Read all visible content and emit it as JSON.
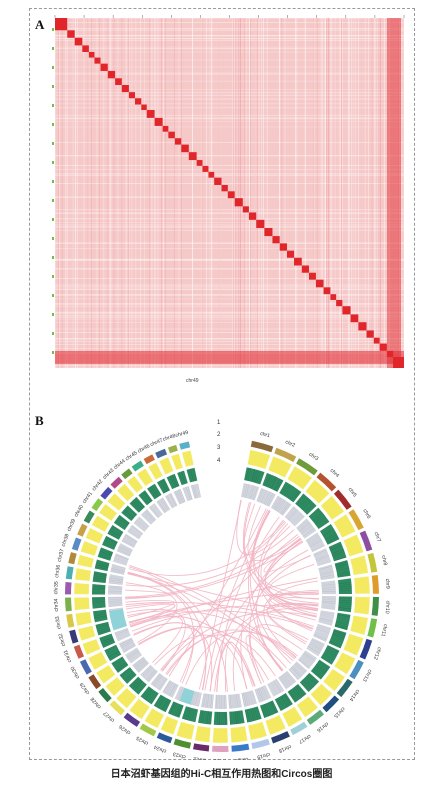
{
  "figure": {
    "panel_a_label": "A",
    "panel_b_label": "B",
    "caption": "日本沼虾基因组的Hi-C相互作用热图和Circos圈图",
    "heatmap_footer": "chr49"
  },
  "colors": {
    "heatmap_bg": "#f6c9c9",
    "heatmap_dense": "#e0252b",
    "track1_yellow": "#f4ea62",
    "track2_green": "#2e8b62",
    "track3_gray": "#d3d6de",
    "link_pink": "#f2b5c3"
  },
  "heatmap": {
    "block_count": 49
  },
  "circos": {
    "track_labels": [
      "1",
      "2",
      "3",
      "4"
    ],
    "chromosomes": [
      "chr1",
      "chr2",
      "chr3",
      "chr4",
      "chr5",
      "chr6",
      "chr7",
      "chr8",
      "chr9",
      "chr10",
      "chr11",
      "chr12",
      "chr13",
      "chr14",
      "chr15",
      "chr16",
      "chr17",
      "chr18",
      "chr19",
      "chr20",
      "chr21",
      "chr22",
      "chr23",
      "chr24",
      "chr25",
      "chr26",
      "chr27",
      "chr28",
      "chr29",
      "chr30",
      "chr31",
      "chr32",
      "chr33",
      "chr34",
      "chr35",
      "chr36",
      "chr37",
      "chr38",
      "chr39",
      "chr40",
      "chr41",
      "chr42",
      "chr43",
      "chr44",
      "chr45",
      "chr46",
      "chr47",
      "chr48",
      "chr49"
    ],
    "chromosome_colors": [
      "#8a6a3a",
      "#c2a24a",
      "#6f9b3b",
      "#b5532f",
      "#a22c2c",
      "#d8a531",
      "#8f4fa0",
      "#c3c63b",
      "#e09b2d",
      "#3f8f4a",
      "#6fbf4a",
      "#2d3f8f",
      "#4a8fbf",
      "#2a6a6a",
      "#1f4f7f",
      "#5aaa7a",
      "#9fd0d8",
      "#2a3f6f",
      "#b2c8e8",
      "#3a7ac8",
      "#e0a0c0",
      "#6a2a6a",
      "#4f8f2f",
      "#2a5a9a",
      "#a0c84a",
      "#5a3a8a",
      "#e8e05a",
      "#2a7a4a",
      "#8a4a2a",
      "#4a6ab0",
      "#c85a4a",
      "#3a3a7a",
      "#d8c84a",
      "#7ab04a",
      "#9a5ab0",
      "#4ab0b0",
      "#b08a3a",
      "#5a8ac8",
      "#c8a04a",
      "#3a8a5a",
      "#8ac84a",
      "#4a4ab0",
      "#b04a8a",
      "#6a9a3a",
      "#3ab08a",
      "#c86a3a",
      "#4a6a9a",
      "#9ab04a",
      "#5ab0c8"
    ]
  }
}
